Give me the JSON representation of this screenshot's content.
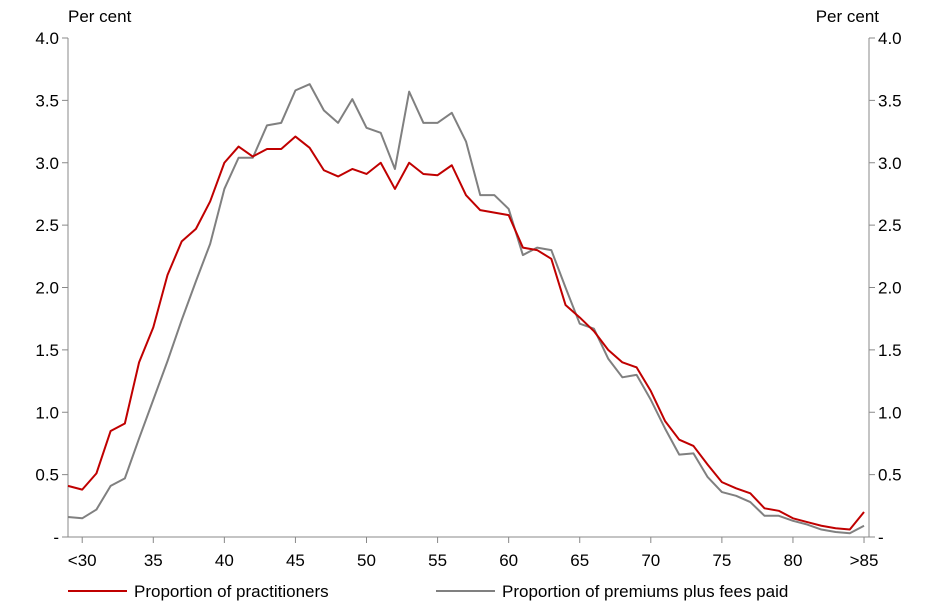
{
  "chart_data": {
    "type": "line",
    "y_unit_left": "Per cent",
    "y_unit_right": "Per cent",
    "ylim": [
      0,
      4.0
    ],
    "y_ticks": [
      {
        "value": 0,
        "label": "-"
      },
      {
        "value": 0.5,
        "label": "0.5"
      },
      {
        "value": 1.0,
        "label": "1.0"
      },
      {
        "value": 1.5,
        "label": "1.5"
      },
      {
        "value": 2.0,
        "label": "2.0"
      },
      {
        "value": 2.5,
        "label": "2.5"
      },
      {
        "value": 3.0,
        "label": "3.0"
      },
      {
        "value": 3.5,
        "label": "3.5"
      },
      {
        "value": 4.0,
        "label": "4.0"
      }
    ],
    "x_range": [
      30,
      85
    ],
    "x_ticks": [
      {
        "value": 30,
        "label": "<30"
      },
      {
        "value": 35,
        "label": "35"
      },
      {
        "value": 40,
        "label": "40"
      },
      {
        "value": 45,
        "label": "45"
      },
      {
        "value": 50,
        "label": "50"
      },
      {
        "value": 55,
        "label": "55"
      },
      {
        "value": 60,
        "label": "60"
      },
      {
        "value": 65,
        "label": "65"
      },
      {
        "value": 70,
        "label": "70"
      },
      {
        "value": 75,
        "label": "75"
      },
      {
        "value": 80,
        "label": "80"
      },
      {
        "value": 85,
        "label": ">85"
      }
    ],
    "x": [
      29,
      30,
      31,
      32,
      33,
      34,
      35,
      36,
      37,
      38,
      39,
      40,
      41,
      42,
      43,
      44,
      45,
      46,
      47,
      48,
      49,
      50,
      51,
      52,
      53,
      54,
      55,
      56,
      57,
      58,
      59,
      60,
      61,
      62,
      63,
      64,
      65,
      66,
      67,
      68,
      69,
      70,
      71,
      72,
      73,
      74,
      75,
      76,
      77,
      78,
      79,
      80,
      81,
      82,
      83,
      84,
      85
    ],
    "series": [
      {
        "name": "Proportion of practitioners",
        "color": "#c00000",
        "values": [
          0.41,
          0.38,
          0.51,
          0.85,
          0.91,
          1.4,
          1.68,
          2.1,
          2.37,
          2.47,
          2.69,
          3.0,
          3.13,
          3.05,
          3.11,
          3.11,
          3.21,
          3.12,
          2.94,
          2.89,
          2.95,
          2.91,
          3.0,
          2.79,
          3.0,
          2.91,
          2.9,
          2.98,
          2.74,
          2.62,
          2.6,
          2.58,
          2.32,
          2.3,
          2.23,
          1.86,
          1.76,
          1.65,
          1.5,
          1.4,
          1.36,
          1.17,
          0.93,
          0.78,
          0.73,
          0.58,
          0.44,
          0.39,
          0.35,
          0.23,
          0.21,
          0.15,
          0.12,
          0.09,
          0.07,
          0.06,
          0.2
        ]
      },
      {
        "name": "Proportion of premiums plus fees paid",
        "color": "#808080",
        "values": [
          0.16,
          0.15,
          0.22,
          0.41,
          0.47,
          0.79,
          1.1,
          1.41,
          1.74,
          2.05,
          2.35,
          2.79,
          3.04,
          3.04,
          3.3,
          3.32,
          3.58,
          3.63,
          3.42,
          3.32,
          3.51,
          3.28,
          3.24,
          2.95,
          3.57,
          3.32,
          3.32,
          3.4,
          3.17,
          2.74,
          2.74,
          2.63,
          2.26,
          2.32,
          2.3,
          2.0,
          1.71,
          1.67,
          1.43,
          1.28,
          1.3,
          1.1,
          0.87,
          0.66,
          0.67,
          0.48,
          0.36,
          0.33,
          0.28,
          0.17,
          0.17,
          0.13,
          0.1,
          0.06,
          0.04,
          0.03,
          0.09
        ]
      }
    ],
    "grid": false,
    "legend_position": "bottom"
  }
}
